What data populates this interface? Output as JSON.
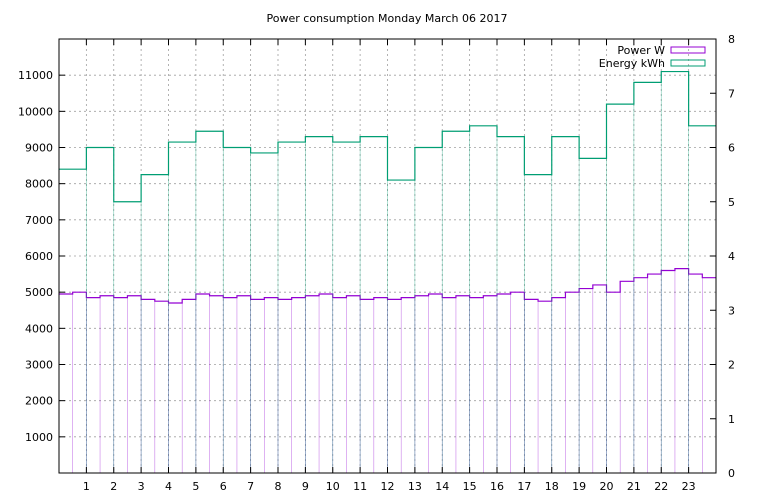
{
  "chart_data": {
    "type": "line",
    "title": "Power consumption Monday March 06 2017",
    "xlabel": "",
    "ylabel": "",
    "y2label": "",
    "x_range": [
      0,
      24
    ],
    "x_ticks": [
      "1",
      "2",
      "3",
      "4",
      "5",
      "6",
      "7",
      "8",
      "9",
      "10",
      "11",
      "12",
      "13",
      "14",
      "15",
      "16",
      "17",
      "18",
      "19",
      "20",
      "21",
      "22",
      "23"
    ],
    "ylim": [
      0,
      12000
    ],
    "y_ticks": [
      "1000",
      "2000",
      "3000",
      "4000",
      "5000",
      "6000",
      "7000",
      "8000",
      "9000",
      "10000",
      "11000"
    ],
    "y2lim": [
      0,
      8
    ],
    "y2_ticks": [
      "0",
      "1",
      "2",
      "3",
      "4",
      "5",
      "6",
      "7",
      "8"
    ],
    "grid": true,
    "legend_position": "top-right",
    "series": [
      {
        "name": "Power W",
        "axis": "left",
        "color": "#9400d3",
        "style": "steps",
        "x": [
          0,
          0.5,
          1,
          1.5,
          2,
          2.5,
          3,
          3.5,
          4,
          4.5,
          5,
          5.5,
          6,
          6.5,
          7,
          7.5,
          8,
          8.5,
          9,
          9.5,
          10,
          10.5,
          11,
          11.5,
          12,
          12.5,
          13,
          13.5,
          14,
          14.5,
          15,
          15.5,
          16,
          16.5,
          17,
          17.5,
          18,
          18.5,
          19,
          19.5,
          20,
          20.5,
          21,
          21.5,
          22,
          22.5,
          23,
          23.5
        ],
        "values": [
          4950,
          5000,
          4850,
          4900,
          4850,
          4900,
          4800,
          4750,
          4700,
          4800,
          4950,
          4900,
          4850,
          4900,
          4800,
          4850,
          4800,
          4850,
          4900,
          4950,
          4850,
          4900,
          4800,
          4850,
          4800,
          4850,
          4900,
          4950,
          4850,
          4900,
          4850,
          4900,
          4950,
          5000,
          4800,
          4750,
          4850,
          5000,
          5100,
          5200,
          5000,
          5300,
          5400,
          5500,
          5600,
          5650,
          5500,
          5400
        ]
      },
      {
        "name": "Energy kWh",
        "axis": "right",
        "color": "#009e73",
        "style": "steps",
        "x": [
          0,
          1,
          2,
          3,
          4,
          5,
          6,
          7,
          8,
          9,
          10,
          11,
          12,
          13,
          14,
          15,
          16,
          17,
          18,
          19,
          20,
          21,
          22,
          23
        ],
        "values": [
          5.6,
          6.0,
          5.0,
          5.5,
          6.1,
          6.3,
          6.0,
          5.9,
          6.1,
          6.2,
          6.1,
          6.2,
          5.4,
          6.0,
          6.3,
          6.4,
          6.2,
          5.5,
          6.2,
          5.8,
          6.8,
          7.2,
          7.4,
          6.4
        ]
      }
    ]
  }
}
